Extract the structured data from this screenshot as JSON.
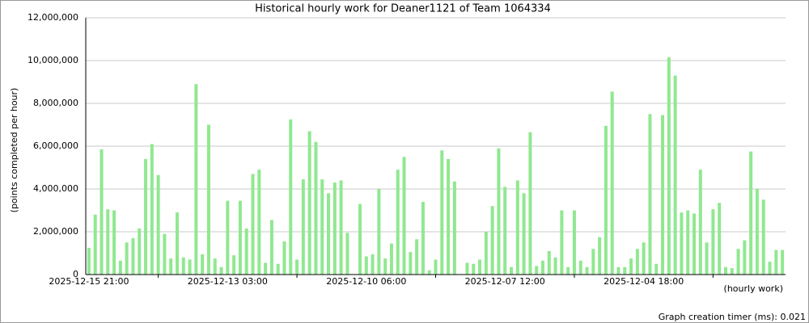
{
  "chart_data": {
    "type": "bar",
    "title": "Historical hourly work for Deaner1121 of Team 1064334",
    "y_label": "(points completed per hour)",
    "x_label": "(hourly work)",
    "footer": "Graph creation timer (ms): 0.021",
    "color": "#90e890",
    "grid": true,
    "categories": [
      "2025-12-15 21:00",
      null,
      null,
      null,
      null,
      null,
      null,
      null,
      null,
      null,
      null,
      null,
      null,
      null,
      null,
      null,
      null,
      null,
      null,
      null,
      null,
      null,
      "2025-12-13 03:00",
      null,
      null,
      null,
      null,
      null,
      null,
      null,
      null,
      null,
      null,
      null,
      null,
      null,
      null,
      null,
      null,
      null,
      null,
      null,
      null,
      null,
      "2025-12-10 06:00",
      null,
      null,
      null,
      null,
      null,
      null,
      null,
      null,
      null,
      null,
      null,
      null,
      null,
      null,
      null,
      null,
      null,
      null,
      null,
      null,
      null,
      "2025-12-07 12:00",
      null,
      null,
      null,
      null,
      null,
      null,
      null,
      null,
      null,
      null,
      null,
      null,
      null,
      null,
      null,
      null,
      null,
      null,
      null,
      null,
      null,
      "2025-12-04 18:00",
      null,
      null,
      null,
      null,
      null,
      null,
      null,
      null,
      null,
      null,
      null,
      null,
      null,
      null,
      null,
      null,
      null,
      null,
      null,
      null,
      null,
      null
    ],
    "values": [
      1250000,
      2800000,
      5850000,
      3050000,
      3000000,
      650000,
      1500000,
      1700000,
      2150000,
      5400000,
      6100000,
      4650000,
      1900000,
      750000,
      2900000,
      800000,
      700000,
      8900000,
      950000,
      7000000,
      750000,
      350000,
      3450000,
      900000,
      3450000,
      2150000,
      4700000,
      4900000,
      550000,
      2550000,
      500000,
      1550000,
      7250000,
      700000,
      4450000,
      6700000,
      6200000,
      4450000,
      3800000,
      4300000,
      4400000,
      1950000,
      0,
      3300000,
      850000,
      950000,
      4000000,
      750000,
      1450000,
      4900000,
      5500000,
      1050000,
      1650000,
      3400000,
      200000,
      700000,
      5800000,
      5400000,
      4350000,
      0,
      550000,
      500000,
      700000,
      2000000,
      3200000,
      5900000,
      4100000,
      350000,
      4400000,
      3800000,
      6650000,
      400000,
      650000,
      1100000,
      800000,
      3000000,
      350000,
      3000000,
      650000,
      350000,
      1200000,
      1750000,
      6950000,
      8550000,
      350000,
      350000,
      750000,
      1200000,
      1500000,
      7500000,
      500000,
      7450000,
      10150000,
      9300000,
      2900000,
      3000000,
      2850000,
      4900000,
      1500000,
      3050000,
      3350000,
      350000,
      300000,
      1200000,
      1600000,
      5750000,
      4000000,
      3500000,
      600000,
      1150000,
      1150000
    ],
    "ylim": [
      0,
      12000000
    ],
    "yticks": [
      {
        "value": 0,
        "label": "0"
      },
      {
        "value": 2000000,
        "label": "2,000,000"
      },
      {
        "value": 4000000,
        "label": "4,000,000"
      },
      {
        "value": 6000000,
        "label": "6,000,000"
      },
      {
        "value": 8000000,
        "label": "8,000,000"
      },
      {
        "value": 10000000,
        "label": "10,000,000"
      },
      {
        "value": 12000000,
        "label": "12,000,000"
      }
    ]
  }
}
